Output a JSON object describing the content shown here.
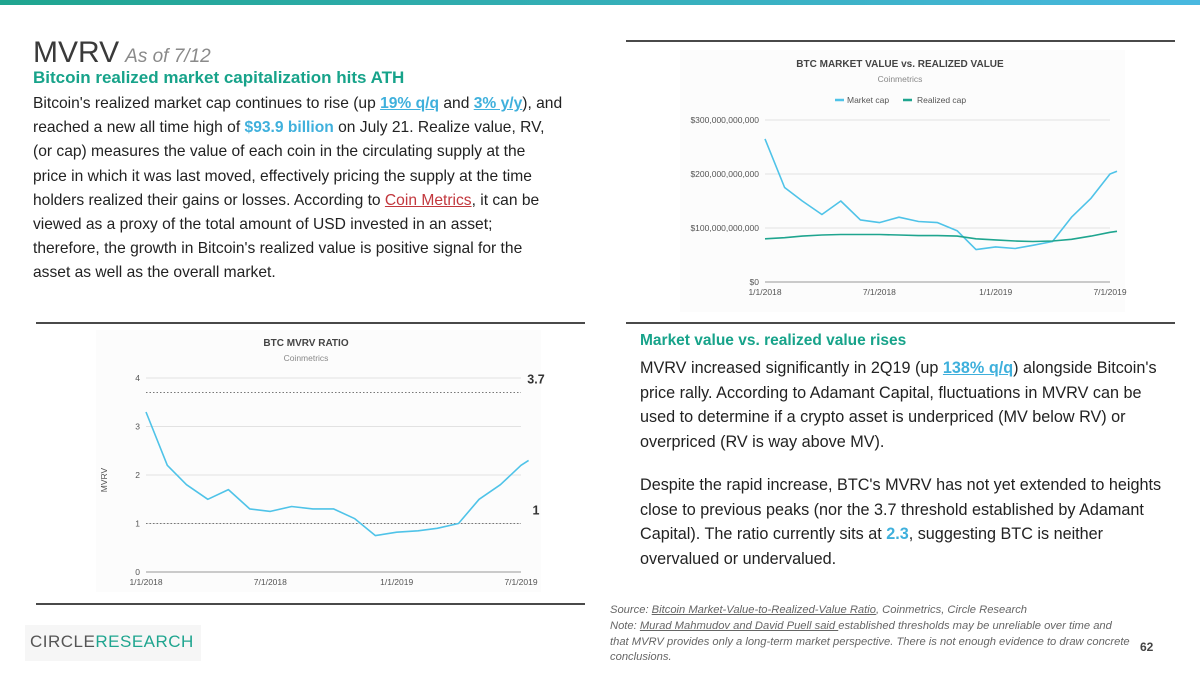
{
  "slide": {
    "title": "MVRV",
    "title_sub": "As of 7/12",
    "subhead": "Bitcoin realized market capitalization hits ATH",
    "paragraph": {
      "t1": "Bitcoin's realized market cap continues to rise (up ",
      "h1": "19% q/q",
      "t2": " and ",
      "h2": "3% y/y",
      "t3": "), and reached a new all time high of ",
      "h3": "$93.9 billion",
      "t4": " on July 21. Realize value, RV, (or cap) measures the value of each coin in the circulating supply at the price in which it was last moved, effectively pricing the supply at the time holders realized their gains or losses. According to ",
      "link": "Coin Metrics",
      "t5": ", it can be viewed as a proxy of the total amount of USD invested in an asset; therefore, the growth in Bitcoin's realized value is positive signal for the asset as well as the overall market."
    },
    "right": {
      "subhead": "Market value vs. realized value rises",
      "p1_t1": "MVRV increased significantly in 2Q19 (up ",
      "p1_h1": "138% q/q",
      "p1_t2": ") alongside Bitcoin's price rally. According to Adamant Capital, fluctuations in MVRV can be used to determine if a crypto asset is underpriced (MV below RV) or overpriced (RV is way above MV).",
      "p2_t1": "Despite the rapid increase, BTC's MVRV has not yet extended to heights close to previous peaks (nor the 3.7 threshold established by Adamant Capital). The ratio currently sits at ",
      "p2_h1": "2.3",
      "p2_t2": ", suggesting BTC is neither overvalued or undervalued."
    },
    "source": {
      "label1": "Source: ",
      "link1": "Bitcoin Market-Value-to-Realized-Value Ratio",
      "rest1": ", Coinmetrics, Circle Research",
      "label2": "Note: ",
      "link2": "Murad Mahmudov and David Puell said ",
      "rest2": "established thresholds may be unreliable over time and that MVRV provides only a long-term market perspective. There is not enough evidence to draw concrete conclusions."
    },
    "page_number": "62",
    "logo": {
      "part1": "CIRCLE",
      "part2": "RESEARCH"
    },
    "colors": {
      "teal": "#17a38a",
      "blue": "#3fb0dc",
      "link_red": "#c2373d",
      "series_blue": "#4fc3e8",
      "series_green": "#1fa58f"
    }
  },
  "chart_data": [
    {
      "type": "line",
      "title": "BTC MARKET VALUE vs. REALIZED VALUE",
      "subtitle": "Coinmetrics",
      "x_ticks": [
        "1/1/2018",
        "7/1/2018",
        "1/1/2019",
        "7/1/2019"
      ],
      "y_ticks": [
        "$0",
        "$100,000,000,000",
        "$200,000,000,000",
        "$300,000,000,000"
      ],
      "ylim": [
        0,
        300000000000
      ],
      "grid": true,
      "legend_position": "top",
      "x": [
        "2018-01-01",
        "2018-02-01",
        "2018-03-01",
        "2018-04-01",
        "2018-05-01",
        "2018-06-01",
        "2018-07-01",
        "2018-08-01",
        "2018-09-01",
        "2018-10-01",
        "2018-11-01",
        "2018-12-01",
        "2019-01-01",
        "2019-02-01",
        "2019-03-01",
        "2019-04-01",
        "2019-05-01",
        "2019-06-01",
        "2019-07-01",
        "2019-07-12"
      ],
      "series": [
        {
          "name": "Market cap",
          "color": "#4fc3e8",
          "values": [
            265000000000,
            175000000000,
            150000000000,
            125000000000,
            150000000000,
            115000000000,
            110000000000,
            120000000000,
            112000000000,
            110000000000,
            95000000000,
            60000000000,
            65000000000,
            62000000000,
            68000000000,
            75000000000,
            120000000000,
            155000000000,
            200000000000,
            205000000000
          ]
        },
        {
          "name": "Realized cap",
          "color": "#1fa58f",
          "values": [
            80000000000,
            82000000000,
            85000000000,
            87000000000,
            88000000000,
            88000000000,
            88000000000,
            87000000000,
            86000000000,
            86000000000,
            85000000000,
            80000000000,
            78000000000,
            76000000000,
            75000000000,
            76000000000,
            79000000000,
            85000000000,
            92000000000,
            93900000000
          ]
        }
      ]
    },
    {
      "type": "line",
      "title": "BTC MVRV RATIO",
      "subtitle": "Coinmetrics",
      "ylabel": "MVRV",
      "x_ticks": [
        "1/1/2018",
        "7/1/2018",
        "1/1/2019",
        "7/1/2019"
      ],
      "y_ticks": [
        "0",
        "1",
        "2",
        "3",
        "4"
      ],
      "ylim": [
        0,
        4
      ],
      "grid": true,
      "thresholds": [
        {
          "label": "3.7",
          "value": 3.7
        },
        {
          "label": "1",
          "value": 1
        }
      ],
      "x": [
        "2018-01-01",
        "2018-02-01",
        "2018-03-01",
        "2018-04-01",
        "2018-05-01",
        "2018-06-01",
        "2018-07-01",
        "2018-08-01",
        "2018-09-01",
        "2018-10-01",
        "2018-11-01",
        "2018-12-01",
        "2019-01-01",
        "2019-02-01",
        "2019-03-01",
        "2019-04-01",
        "2019-05-01",
        "2019-06-01",
        "2019-07-01",
        "2019-07-12"
      ],
      "series": [
        {
          "name": "MVRV",
          "color": "#4fc3e8",
          "values": [
            3.3,
            2.2,
            1.8,
            1.5,
            1.7,
            1.3,
            1.25,
            1.35,
            1.3,
            1.3,
            1.1,
            0.75,
            0.82,
            0.85,
            0.9,
            1.0,
            1.5,
            1.8,
            2.2,
            2.3
          ]
        }
      ]
    }
  ]
}
